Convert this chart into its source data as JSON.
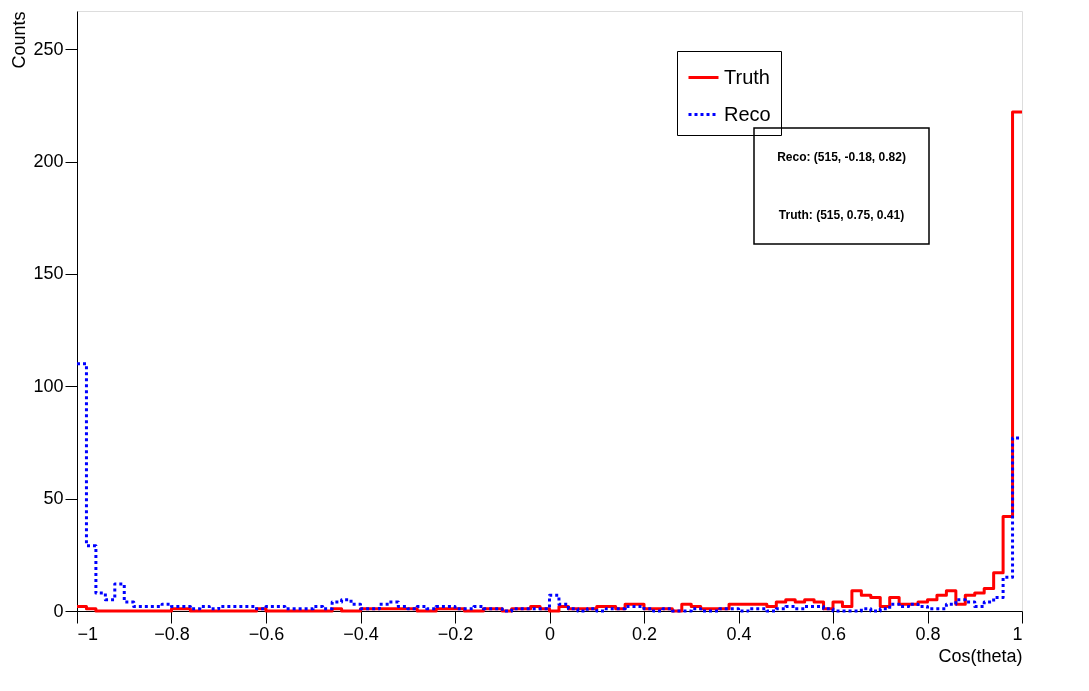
{
  "chart_data": {
    "type": "histogram",
    "xlabel": "Cos(theta)",
    "ylabel": "Counts",
    "bins": [
      -1,
      -0.98,
      -0.96,
      -0.94,
      -0.92,
      -0.9,
      -0.88,
      -0.86,
      -0.84,
      -0.82,
      -0.8,
      -0.78,
      -0.76,
      -0.74,
      -0.72,
      -0.7,
      -0.68,
      -0.66,
      -0.64,
      -0.62,
      -0.6,
      -0.58,
      -0.56,
      -0.54,
      -0.52,
      -0.5,
      -0.48,
      -0.46,
      -0.44,
      -0.42,
      -0.4,
      -0.38,
      -0.36,
      -0.34,
      -0.32,
      -0.3,
      -0.28,
      -0.26,
      -0.24,
      -0.22,
      -0.2,
      -0.18,
      -0.16,
      -0.14,
      -0.12,
      -0.1,
      -0.08,
      -0.06,
      -0.04,
      -0.02,
      0,
      0.02,
      0.04,
      0.06,
      0.08,
      0.1,
      0.12,
      0.14,
      0.16,
      0.18,
      0.2,
      0.22,
      0.24,
      0.26,
      0.28,
      0.3,
      0.32,
      0.34,
      0.36,
      0.38,
      0.4,
      0.42,
      0.44,
      0.46,
      0.48,
      0.5,
      0.52,
      0.54,
      0.56,
      0.58,
      0.6,
      0.62,
      0.64,
      0.66,
      0.68,
      0.7,
      0.72,
      0.74,
      0.76,
      0.78,
      0.8,
      0.82,
      0.84,
      0.86,
      0.88,
      0.9,
      0.92,
      0.94,
      0.96,
      0.98,
      1
    ],
    "series": [
      {
        "name": "Truth",
        "color": "#ff0000",
        "line_style": "solid",
        "values": [
          2,
          1,
          0,
          0,
          0,
          0,
          0,
          0,
          0,
          0,
          1,
          1,
          0,
          0,
          0,
          0,
          0,
          0,
          0,
          1,
          0,
          0,
          0,
          0,
          0,
          0,
          0,
          1,
          0,
          0,
          1,
          1,
          1,
          1,
          1,
          1,
          0,
          0,
          1,
          1,
          1,
          0,
          0,
          1,
          1,
          0,
          1,
          1,
          2,
          1,
          0,
          2,
          1,
          1,
          1,
          2,
          2,
          1,
          3,
          3,
          1,
          1,
          1,
          0,
          3,
          2,
          1,
          1,
          1,
          3,
          3,
          3,
          3,
          2,
          4,
          5,
          4,
          5,
          4,
          1,
          4,
          2,
          9,
          7,
          6,
          2,
          6,
          3,
          3,
          4,
          5,
          7,
          9,
          3,
          7,
          8,
          10,
          17,
          42,
          222
        ]
      },
      {
        "name": "Reco",
        "color": "#0000ff",
        "line_style": "dotted",
        "values": [
          110,
          29,
          8,
          5,
          12,
          4,
          2,
          2,
          2,
          3,
          2,
          2,
          1,
          2,
          1,
          2,
          2,
          2,
          2,
          1,
          2,
          2,
          1,
          1,
          1,
          2,
          1,
          4,
          5,
          3,
          1,
          1,
          3,
          4,
          2,
          1,
          2,
          1,
          2,
          2,
          1,
          1,
          2,
          1,
          1,
          0,
          1,
          1,
          1,
          1,
          7,
          3,
          1,
          0,
          1,
          0,
          1,
          1,
          2,
          2,
          1,
          0,
          1,
          0,
          0,
          1,
          0,
          0,
          1,
          1,
          0,
          1,
          1,
          0,
          1,
          2,
          1,
          2,
          2,
          1,
          0,
          0,
          0,
          1,
          0,
          1,
          3,
          2,
          3,
          2,
          1,
          1,
          3,
          5,
          4,
          2,
          4,
          6,
          15,
          77
        ]
      }
    ],
    "xlim": [
      -1,
      1
    ],
    "ylim": [
      0,
      267
    ],
    "xticks": [
      -1,
      -0.8,
      -0.6,
      -0.4,
      -0.2,
      0,
      0.2,
      0.4,
      0.6,
      0.8,
      1
    ],
    "yticks": [
      0,
      50,
      100,
      150,
      200,
      250
    ],
    "grid": false,
    "legend": "top right",
    "annotations": [
      "Reco: (515, -0.18, 0.82)",
      "Truth: (515, 0.75, 0.41)"
    ]
  }
}
